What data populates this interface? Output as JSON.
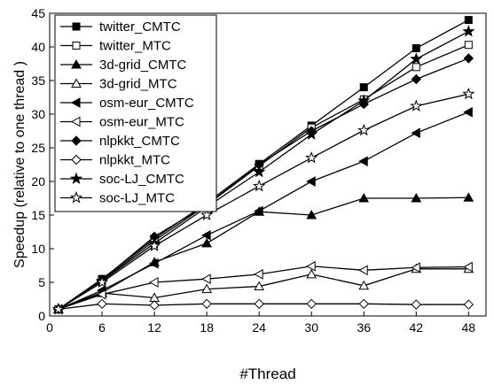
{
  "chart_data": {
    "type": "line",
    "xlabel": "#Thread",
    "ylabel": "Speedup (relative to one thread )",
    "x": [
      1,
      6,
      12,
      18,
      24,
      30,
      36,
      42,
      48
    ],
    "xticks": [
      "0",
      "6",
      "12",
      "18",
      "24",
      "30",
      "36",
      "42",
      "48"
    ],
    "yticks": [
      "0",
      "5",
      "10",
      "15",
      "20",
      "25",
      "30",
      "35",
      "40",
      "45"
    ],
    "xlim": [
      0,
      50
    ],
    "ylim": [
      0,
      45
    ],
    "grid": false,
    "legend_position": "top-left",
    "series": [
      {
        "name": "twitter_CMTC",
        "marker": "square-filled",
        "values": [
          1,
          5.5,
          11.5,
          16.8,
          22.6,
          28.3,
          34.0,
          39.8,
          44.0
        ]
      },
      {
        "name": "twitter_MTC",
        "marker": "square-open",
        "values": [
          1,
          5.3,
          11.2,
          16.5,
          22.3,
          28.0,
          32.2,
          37.0,
          40.3
        ]
      },
      {
        "name": "3d-grid_CMTC",
        "marker": "triangle-up-filled",
        "values": [
          1,
          3.5,
          8.0,
          10.8,
          15.5,
          15.0,
          17.5,
          17.5,
          17.6
        ]
      },
      {
        "name": "3d-grid_MTC",
        "marker": "triangle-up-open",
        "values": [
          1,
          3.4,
          2.7,
          4.0,
          4.4,
          6.2,
          4.5,
          7.0,
          7.0
        ]
      },
      {
        "name": "osm-eur_CMTC",
        "marker": "triangle-left-filled",
        "values": [
          1,
          3.8,
          7.8,
          12.0,
          15.6,
          20.0,
          23.0,
          27.2,
          30.3
        ]
      },
      {
        "name": "osm-eur_MTC",
        "marker": "triangle-left-open",
        "values": [
          1,
          3.2,
          5.0,
          5.5,
          6.2,
          7.4,
          6.8,
          7.2,
          7.3
        ]
      },
      {
        "name": "nlpkkt_CMTC",
        "marker": "diamond-filled",
        "values": [
          1,
          5.4,
          11.8,
          16.5,
          22.5,
          27.5,
          31.5,
          35.2,
          38.3
        ]
      },
      {
        "name": "nlpkkt_MTC",
        "marker": "diamond-open",
        "values": [
          1,
          1.8,
          1.6,
          1.8,
          1.8,
          1.8,
          1.8,
          1.7,
          1.7
        ]
      },
      {
        "name": "soc-LJ_CMTC",
        "marker": "star-filled",
        "values": [
          1,
          5.2,
          10.8,
          16.2,
          21.4,
          27.0,
          32.0,
          38.2,
          42.3
        ]
      },
      {
        "name": "soc-LJ_MTC",
        "marker": "star-open",
        "values": [
          1,
          5.0,
          10.4,
          15.0,
          19.3,
          23.5,
          27.6,
          31.2,
          33.0
        ]
      }
    ]
  }
}
